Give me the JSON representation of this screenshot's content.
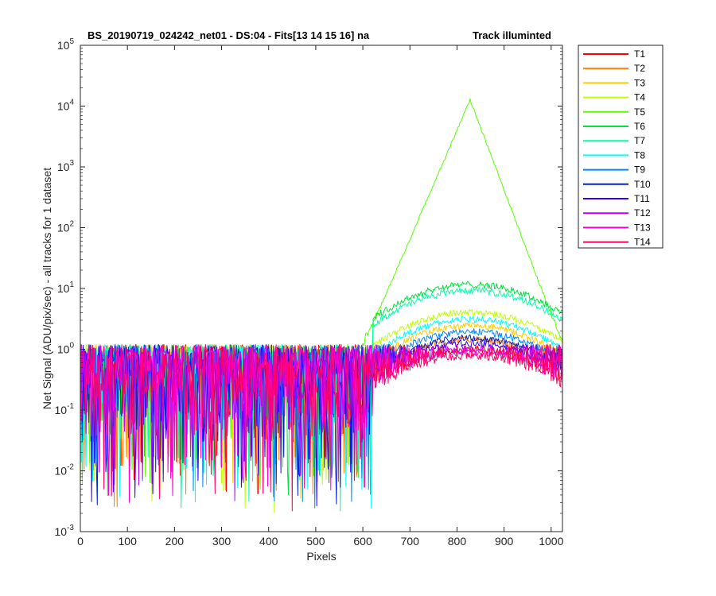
{
  "chart_data": {
    "type": "line",
    "title": "BS_20190719_024242_net01 - DS:04 - Fits[13  14  15  16]   na",
    "title_right": "Track illuminted",
    "xlabel": "Pixels",
    "ylabel": "Net Signal (ADU/pix/sec) - all tracks for 1 dataset",
    "xlim": [
      0,
      1024
    ],
    "ylim": [
      0.001,
      100000
    ],
    "yscale": "log",
    "x_ticks": [
      "0",
      "100",
      "200",
      "300",
      "400",
      "500",
      "600",
      "700",
      "800",
      "900",
      "1000"
    ],
    "y_ticks": [
      {
        "base": "10",
        "exp": "-3"
      },
      {
        "base": "10",
        "exp": "-2"
      },
      {
        "base": "10",
        "exp": "-1"
      },
      {
        "base": "10",
        "exp": "0"
      },
      {
        "base": "10",
        "exp": "1"
      },
      {
        "base": "10",
        "exp": "2"
      },
      {
        "base": "10",
        "exp": "3"
      },
      {
        "base": "10",
        "exp": "4"
      },
      {
        "base": "10",
        "exp": "5"
      }
    ],
    "grid": false,
    "legend_position": "outside-top-right",
    "noise_floor": {
      "x_range": [
        0,
        1024
      ],
      "y_min": 0.002,
      "y_max": 1.5
    },
    "series": [
      {
        "name": "T1",
        "color": "#ff0000",
        "peak_x": 830,
        "peak_y": 1.0
      },
      {
        "name": "T2",
        "color": "#ff7f00",
        "peak_x": 830,
        "peak_y": 1.5
      },
      {
        "name": "T3",
        "color": "#ffcc00",
        "peak_x": 830,
        "peak_y": 2.5
      },
      {
        "name": "T4",
        "color": "#bfff00",
        "peak_x": 830,
        "peak_y": 4.2
      },
      {
        "name": "T5",
        "color": "#55ff00",
        "peak_x": 828,
        "peak_y": 13000
      },
      {
        "name": "T6",
        "color": "#00e040",
        "peak_x": 830,
        "peak_y": 12
      },
      {
        "name": "T7",
        "color": "#00ffaa",
        "peak_x": 830,
        "peak_y": 9.5
      },
      {
        "name": "T8",
        "color": "#00ffff",
        "peak_x": 830,
        "peak_y": 3.2
      },
      {
        "name": "T9",
        "color": "#0088ff",
        "peak_x": 830,
        "peak_y": 2.0
      },
      {
        "name": "T10",
        "color": "#0022cc",
        "peak_x": 830,
        "peak_y": 1.6
      },
      {
        "name": "T11",
        "color": "#3300ff",
        "peak_x": 830,
        "peak_y": 1.3
      },
      {
        "name": "T12",
        "color": "#bb00ff",
        "peak_x": 830,
        "peak_y": 1.0
      },
      {
        "name": "T13",
        "color": "#ff00cc",
        "peak_x": 830,
        "peak_y": 0.9
      },
      {
        "name": "T14",
        "color": "#ff0066",
        "peak_x": 830,
        "peak_y": 0.8
      }
    ]
  }
}
